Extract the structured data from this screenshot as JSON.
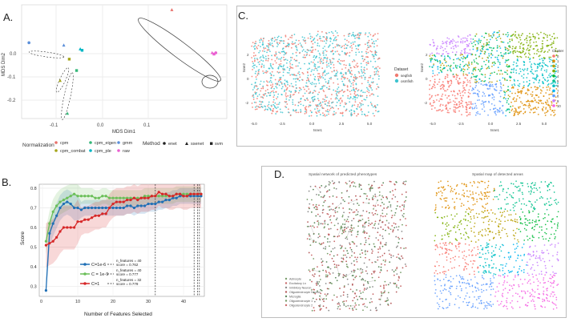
{
  "labels": {
    "a": "A.",
    "b": "B.",
    "c": "C.",
    "d": "D."
  },
  "panel_a": {
    "xlabel": "MDS Dim1",
    "ylabel": "MDS Dim2",
    "xticks": [
      "-0.1",
      "0.0",
      "0.1"
    ],
    "yticks": [
      "0.0",
      "-0.1",
      "-0.2"
    ],
    "legend": {
      "normalization_title": "Normalization",
      "method_title": "Method",
      "normalization": [
        {
          "label": "cpm",
          "color": "#e8716b"
        },
        {
          "label": "cpm_combat",
          "color": "#a5a51a"
        },
        {
          "label": "cpm_eigen",
          "color": "#35b779"
        },
        {
          "label": "cpm_ple",
          "color": "#00b6c4"
        },
        {
          "label": "gmm",
          "color": "#5b8fd9"
        },
        {
          "label": "raw",
          "color": "#ea5fd1"
        }
      ],
      "method": [
        {
          "label": "enet",
          "shape": "circle"
        },
        {
          "label": "ssenet",
          "shape": "triangle"
        },
        {
          "label": "svm",
          "shape": "square"
        }
      ]
    }
  },
  "panel_c": {
    "left": {
      "ylabel": "tsne2",
      "xlabel": "tsne1",
      "xticks": [
        "-5.0",
        "-2.5",
        "0.0",
        "2.5",
        "5.0"
      ],
      "yticks": [
        "2",
        "0",
        "-2"
      ],
      "legend_title": "Dataset",
      "legend": [
        {
          "label": "seqfish",
          "color": "#f07b70"
        },
        {
          "label": "osmfish",
          "color": "#3fc4d0"
        }
      ]
    },
    "right": {
      "ylabel": "tsne2",
      "xlabel": "tsne1",
      "xticks": [
        "-5.0",
        "-2.5",
        "0.0",
        "2.5",
        "5.0"
      ],
      "yticks": [
        "2",
        "0",
        "-2"
      ],
      "legend_title": "Cluster",
      "clusters": [
        {
          "label": "0",
          "color": "#f8766d"
        },
        {
          "label": "1",
          "color": "#de8c00"
        },
        {
          "label": "2",
          "color": "#b79f00"
        },
        {
          "label": "3",
          "color": "#7cae00"
        },
        {
          "label": "4",
          "color": "#00ba38"
        },
        {
          "label": "5",
          "color": "#00c08b"
        },
        {
          "label": "6",
          "color": "#00bfc4"
        },
        {
          "label": "7",
          "color": "#00b4f0"
        },
        {
          "label": "8",
          "color": "#619cff"
        },
        {
          "label": "9",
          "color": "#c77cff"
        },
        {
          "label": "10",
          "color": "#f564e3"
        }
      ]
    }
  },
  "panel_d": {
    "left_title": "Spatial network of predicted phenotypes",
    "right_title": "Spatial map of detected areas",
    "left_legend": [
      "Astrocyte",
      "Excitatory Ln",
      "Inhibitory Neuron",
      "Oligodendrocyte Neuron",
      "Microglia",
      "Oligodendrocyte 1",
      "Oligodendrocyte 2"
    ]
  },
  "chart_data": [
    {
      "type": "scatter",
      "panel": "A",
      "xlabel": "MDS Dim1",
      "ylabel": "MDS Dim2",
      "xlim": [
        -0.26,
        0.3
      ],
      "ylim": [
        -0.3,
        0.15
      ],
      "points": [
        {
          "x": 0.15,
          "y": 0.13,
          "color": "#e8716b",
          "shape": "triangle"
        },
        {
          "x": 0.26,
          "y": -0.04,
          "color": "#ea5fd1",
          "shape": "triangle"
        },
        {
          "x": 0.265,
          "y": -0.045,
          "color": "#ea5fd1",
          "shape": "square"
        },
        {
          "x": 0.27,
          "y": -0.04,
          "color": "#ea5fd1",
          "shape": "circle"
        },
        {
          "x": -0.24,
          "y": 0.0,
          "color": "#5b8fd9",
          "shape": "circle"
        },
        {
          "x": -0.145,
          "y": -0.01,
          "color": "#5b8fd9",
          "shape": "triangle"
        },
        {
          "x": -0.1,
          "y": -0.025,
          "color": "#00b6c4",
          "shape": "triangle"
        },
        {
          "x": -0.095,
          "y": -0.03,
          "color": "#00b6c4",
          "shape": "square"
        },
        {
          "x": -0.155,
          "y": -0.15,
          "color": "#a5a51a",
          "shape": "triangle"
        },
        {
          "x": -0.13,
          "y": -0.065,
          "color": "#a5a51a",
          "shape": "square"
        },
        {
          "x": -0.135,
          "y": -0.28,
          "color": "#35b779",
          "shape": "triangle"
        },
        {
          "x": -0.11,
          "y": -0.11,
          "color": "#35b779",
          "shape": "square"
        }
      ]
    },
    {
      "type": "line",
      "panel": "B",
      "xlabel": "Number of Features Selected",
      "ylabel": "Score",
      "xlim": [
        0,
        45
      ],
      "ylim": [
        0.25,
        0.82
      ],
      "yticks": [
        0.3,
        0.4,
        0.5,
        0.6,
        0.7,
        0.8
      ],
      "xticks": [
        0,
        10,
        20,
        30,
        40
      ],
      "vlines": [
        32,
        43,
        44,
        44.5
      ],
      "series": [
        {
          "name": "C=1e-6",
          "color": "#1f6fb5",
          "annotation": "n_features = 40\nscore = 0.762",
          "values": [
            0.28,
            0.57,
            0.62,
            0.66,
            0.7,
            0.72,
            0.73,
            0.72,
            0.7,
            0.7,
            0.69,
            0.7,
            0.7,
            0.7,
            0.7,
            0.7,
            0.7,
            0.7,
            0.7,
            0.7,
            0.7,
            0.7,
            0.7,
            0.71,
            0.71,
            0.7,
            0.71,
            0.71,
            0.71,
            0.72,
            0.72,
            0.72,
            0.73,
            0.73,
            0.74,
            0.74,
            0.75,
            0.75,
            0.76,
            0.76,
            0.76,
            0.76,
            0.76,
            0.76,
            0.76
          ]
        },
        {
          "name": "C = 1e-9",
          "color": "#6bbf59",
          "annotation": "n_features = 40\nscore = 0.777",
          "values": [
            0.53,
            0.62,
            0.68,
            0.71,
            0.73,
            0.74,
            0.75,
            0.76,
            0.77,
            0.76,
            0.76,
            0.76,
            0.76,
            0.76,
            0.75,
            0.75,
            0.76,
            0.76,
            0.75,
            0.75,
            0.75,
            0.75,
            0.75,
            0.75,
            0.75,
            0.75,
            0.75,
            0.75,
            0.76,
            0.76,
            0.76,
            0.76,
            0.76,
            0.76,
            0.76,
            0.76,
            0.76,
            0.77,
            0.77,
            0.77,
            0.77,
            0.77,
            0.77,
            0.77,
            0.77
          ]
        },
        {
          "name": "C=1",
          "color": "#d62728",
          "annotation": "n_features = 32\nscore = 0.779",
          "values": [
            0.51,
            0.52,
            0.53,
            0.55,
            0.58,
            0.6,
            0.6,
            0.6,
            0.6,
            0.63,
            0.63,
            0.64,
            0.64,
            0.65,
            0.66,
            0.66,
            0.67,
            0.67,
            0.7,
            0.72,
            0.73,
            0.73,
            0.73,
            0.74,
            0.74,
            0.75,
            0.74,
            0.75,
            0.75,
            0.75,
            0.76,
            0.76,
            0.78,
            0.77,
            0.77,
            0.76,
            0.76,
            0.77,
            0.77,
            0.76,
            0.76,
            0.77,
            0.77,
            0.77,
            0.77
          ]
        }
      ]
    }
  ]
}
